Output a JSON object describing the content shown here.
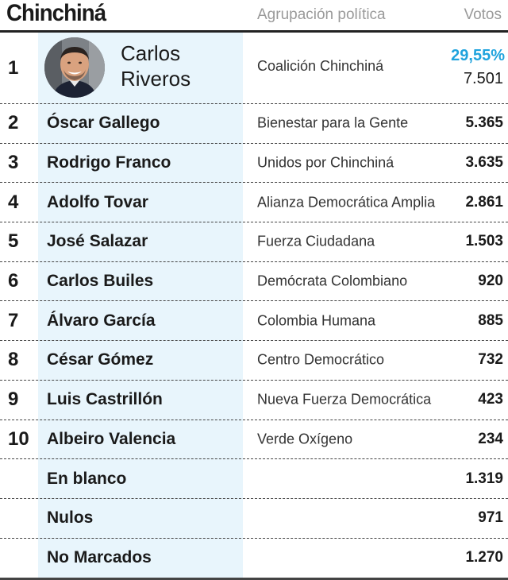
{
  "header": {
    "title": "Chinchiná",
    "party_col": "Agrupación política",
    "votes_col": "Votos"
  },
  "winner": {
    "rank": "1",
    "name_line1": "Carlos",
    "name_line2": "Riveros",
    "party": "Coalición Chinchiná",
    "percent": "29,55%",
    "votes": "7.501"
  },
  "rows": [
    {
      "rank": "2",
      "name": "Óscar Gallego",
      "party": "Bienestar para la Gente",
      "votes": "5.365"
    },
    {
      "rank": "3",
      "name": "Rodrigo Franco",
      "party": "Unidos por Chinchiná",
      "votes": "3.635"
    },
    {
      "rank": "4",
      "name": "Adolfo Tovar",
      "party": "Alianza Democrática Amplia",
      "votes": "2.861"
    },
    {
      "rank": "5",
      "name": "José Salazar",
      "party": "Fuerza Ciudadana",
      "votes": "1.503"
    },
    {
      "rank": "6",
      "name": "Carlos Builes",
      "party": "Demócrata Colombiano",
      "votes": "920"
    },
    {
      "rank": "7",
      "name": "Álvaro García",
      "party": "Colombia Humana",
      "votes": "885"
    },
    {
      "rank": "8",
      "name": "César Gómez",
      "party": "Centro Democrático",
      "votes": "732"
    },
    {
      "rank": "9",
      "name": "Luis Castrillón",
      "party": "Nueva Fuerza Democrática",
      "votes": "423"
    },
    {
      "rank": "10",
      "name": "Albeiro Valencia",
      "party": "Verde Oxígeno",
      "votes": "234"
    },
    {
      "rank": "",
      "name": "En blanco",
      "party": "",
      "votes": "1.319"
    },
    {
      "rank": "",
      "name": "Nulos",
      "party": "",
      "votes": "971"
    },
    {
      "rank": "",
      "name": "No Marcados",
      "party": "",
      "votes": "1.270"
    }
  ],
  "colors": {
    "accent": "#1fa3dd",
    "stripe": "#e8f5fc"
  }
}
